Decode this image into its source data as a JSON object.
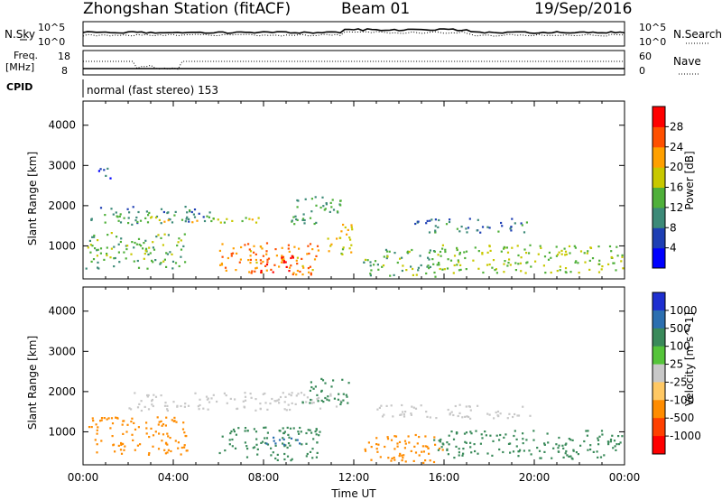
{
  "header": {
    "station": "Zhongshan Station (fitACF)",
    "beam": "Beam 01",
    "date": "19/Sep/2016"
  },
  "top_panels": {
    "nsky": {
      "label": "N.Sky",
      "tick_top": "10^5",
      "tick_bottom": "10^0",
      "right_tick_top": "10^5",
      "right_tick_bottom": "10^0",
      "right_label": "N.Search",
      "right_style": "dotted"
    },
    "freq": {
      "label_line1": "Freq.",
      "label_line2": "[MHz]",
      "tick_top": "18",
      "tick_bottom": "8",
      "right_tick_top": "60",
      "right_tick_bottom": "0",
      "right_label": "Nave",
      "right_style": "dotted"
    },
    "cpid": {
      "label": "CPID",
      "text": "normal (fast stereo) 153"
    }
  },
  "chart_data": [
    {
      "type": "heatmap",
      "name": "power",
      "ylabel": "Slant Range [km]",
      "xlabel": "",
      "yticks": [
        "1000",
        "2000",
        "3000",
        "4000"
      ],
      "ylim": [
        180,
        4600
      ],
      "colorbar": {
        "label": "Power [dB]",
        "ticks": [
          "4",
          "8",
          "12",
          "16",
          "20",
          "24",
          "28"
        ],
        "colors": [
          "#0000ff",
          "#1e3fb4",
          "#3c8a78",
          "#4fb03a",
          "#c8c800",
          "#ffa000",
          "#ff5000",
          "#ff0000"
        ]
      },
      "regions": [
        {
          "t0": 0.3,
          "t1": 5.6,
          "r0": 1550,
          "r1": 2000,
          "level": 10
        },
        {
          "t0": 1.0,
          "t1": 7.8,
          "r0": 1600,
          "r1": 1750,
          "level": 17
        },
        {
          "t0": 9.2,
          "t1": 11.4,
          "r0": 1550,
          "r1": 2300,
          "level": 12
        },
        {
          "t0": 6.0,
          "t1": 10.4,
          "r0": 300,
          "r1": 1100,
          "level": 23
        },
        {
          "t0": 7.4,
          "t1": 9.4,
          "r0": 350,
          "r1": 850,
          "level": 28
        },
        {
          "t0": 0.1,
          "t1": 4.6,
          "r0": 450,
          "r1": 1350,
          "level": 14
        },
        {
          "t0": 12.4,
          "t1": 16.0,
          "r0": 250,
          "r1": 950,
          "level": 13
        },
        {
          "t0": 14.6,
          "t1": 19.8,
          "r0": 1350,
          "r1": 1700,
          "level": 9
        },
        {
          "t0": 15.5,
          "t1": 23.9,
          "r0": 350,
          "r1": 1050,
          "level": 16
        },
        {
          "t0": 0.4,
          "t1": 1.3,
          "r0": 2700,
          "r1": 2950,
          "level": 6
        },
        {
          "t0": 10.8,
          "t1": 12.0,
          "r0": 800,
          "r1": 1600,
          "level": 18
        }
      ]
    },
    {
      "type": "heatmap",
      "name": "velocity",
      "ylabel": "Slant Range [km]",
      "xlabel": "Time UT",
      "xticks": [
        "00:00",
        "04:00",
        "08:00",
        "12:00",
        "16:00",
        "20:00",
        "00:00"
      ],
      "yticks": [
        "1000",
        "2000",
        "3000",
        "4000"
      ],
      "ylim": [
        180,
        4600
      ],
      "colorbar": {
        "label": "Velocity [m s^-1]",
        "ticks": [
          "1000",
          "500",
          "100",
          "25",
          "-25",
          "-100",
          "-500",
          "-1000"
        ],
        "colors": [
          "#1e2fd0",
          "#2c6fb0",
          "#3a8a5a",
          "#55c43a",
          "#c8c8c8",
          "#ffc864",
          "#ff8c00",
          "#ff4000",
          "#ff0000"
        ]
      },
      "regions": [
        {
          "t0": 2.0,
          "t1": 11.4,
          "r0": 1550,
          "r1": 2000,
          "level": 0
        },
        {
          "t0": 0.2,
          "t1": 4.6,
          "r0": 450,
          "r1": 1400,
          "level": -150
        },
        {
          "t0": 6.0,
          "t1": 10.5,
          "r0": 300,
          "r1": 1150,
          "level": 150
        },
        {
          "t0": 7.6,
          "t1": 9.6,
          "r0": 700,
          "r1": 900,
          "level": 900
        },
        {
          "t0": 12.4,
          "t1": 16.0,
          "r0": 250,
          "r1": 950,
          "level": -150
        },
        {
          "t0": 13.0,
          "t1": 19.8,
          "r0": 1350,
          "r1": 1700,
          "level": 0
        },
        {
          "t0": 15.5,
          "t1": 23.9,
          "r0": 350,
          "r1": 1050,
          "level": 120
        },
        {
          "t0": 9.6,
          "t1": 11.8,
          "r0": 1700,
          "r1": 2350,
          "level": 200
        }
      ]
    }
  ]
}
